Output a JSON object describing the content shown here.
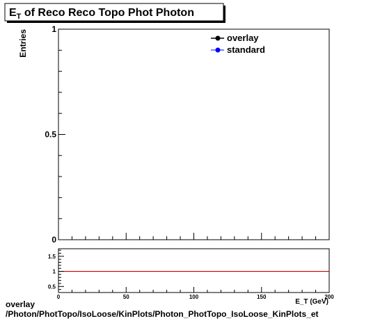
{
  "chart_data": [
    {
      "type": "line",
      "title": "E_T of Reco Reco Topo Phot Photon",
      "title_main": "E",
      "title_sub": "T",
      "title_rest": " of Reco Reco Topo Phot Photon",
      "ylabel": "Entries",
      "xlabel": "E_T (GeV)",
      "xlim": [
        0,
        200
      ],
      "ylim": [
        0,
        1
      ],
      "y_tick_labels": [
        "0",
        "0.5",
        "1"
      ],
      "legend_position": "top-right",
      "series": [
        {
          "name": "overlay",
          "color": "#000000",
          "marker": "filled-circle",
          "values": []
        },
        {
          "name": "standard",
          "color": "#0000ff",
          "marker": "filled-circle",
          "values": []
        }
      ]
    },
    {
      "type": "line",
      "title": "",
      "xlim": [
        0,
        200
      ],
      "ylim": [
        0.3,
        1.75
      ],
      "x_tick_labels": [
        "0",
        "50",
        "100",
        "150",
        "200"
      ],
      "y_tick_labels": [
        "0.5",
        "1",
        "1.5"
      ],
      "reference_line": {
        "y": 1,
        "color": "#cc0000"
      }
    }
  ],
  "footer": {
    "line1": "overlay",
    "line2": "/Photon/PhotTopo/IsoLoose/KinPlots/Photon_PhotTopo_IsoLoose_KinPlots_et"
  }
}
